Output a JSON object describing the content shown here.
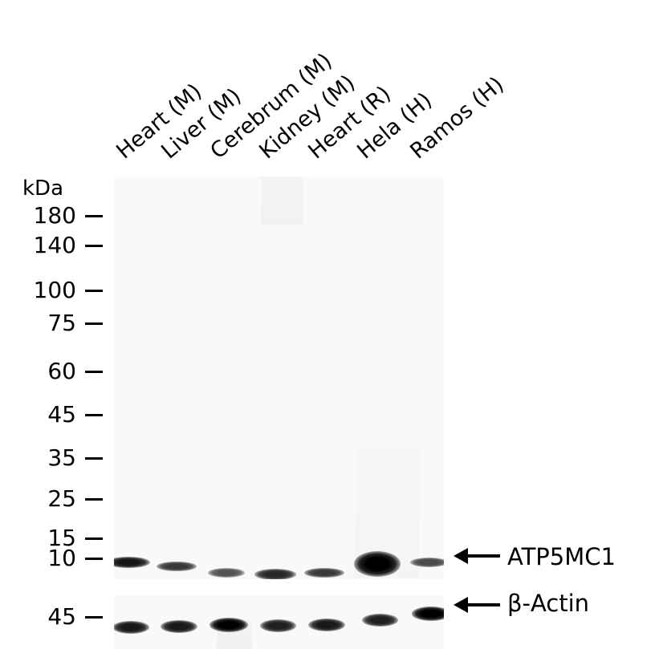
{
  "lanes": [
    "Heart (M)",
    "Liver (M)",
    "Cerebrum (M)",
    "Kidney (M)",
    "Heart (R)",
    "Hela (H)",
    "Ramos (H)"
  ],
  "markers": {
    "unit": "kDa",
    "values": [
      "180",
      "140",
      "100",
      "75",
      "60",
      "45",
      "35",
      "25",
      "15",
      "10"
    ],
    "actin_marker": "45"
  },
  "targets": {
    "main": "ATP5MC1",
    "loading": "β-Actin"
  },
  "band_intensity": {
    "atp5mc1": [
      0.8,
      0.6,
      0.45,
      0.7,
      0.6,
      1.0,
      0.5
    ],
    "actin": [
      0.75,
      0.75,
      1.0,
      0.7,
      0.75,
      0.7,
      0.95
    ]
  }
}
